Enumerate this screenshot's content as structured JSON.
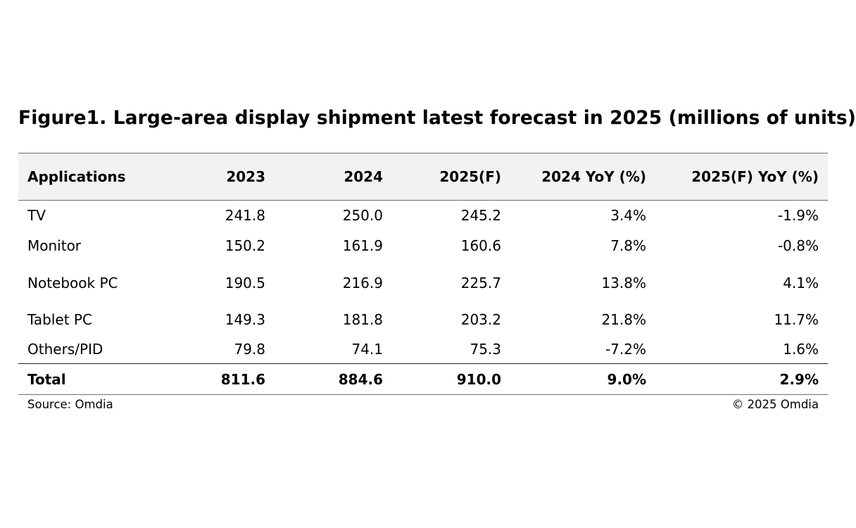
{
  "chart_data": {
    "type": "table",
    "title": "Figure1. Large-area display shipment latest forecast in 2025 (millions of units)",
    "columns": [
      "Applications",
      "2023",
      "2024",
      "2025(F)",
      "2024 YoY (%)",
      "2025(F) YoY (%)"
    ],
    "rows": [
      [
        "TV",
        "241.8",
        "250.0",
        "245.2",
        "3.4%",
        "-1.9%"
      ],
      [
        "Monitor",
        "150.2",
        "161.9",
        "160.6",
        "7.8%",
        "-0.8%"
      ],
      [
        "Notebook PC",
        "190.5",
        "216.9",
        "225.7",
        "13.8%",
        "4.1%"
      ],
      [
        "Tablet PC",
        "149.3",
        "181.8",
        "203.2",
        "21.8%",
        "11.7%"
      ],
      [
        "Others/PID",
        "79.8",
        "74.1",
        "75.3",
        "-7.2%",
        "1.6%"
      ]
    ],
    "total": [
      "Total",
      "811.6",
      "884.6",
      "910.0",
      "9.0%",
      "2.9%"
    ],
    "source": "Source: Omdia",
    "copyright": "© 2025 Omdia"
  }
}
